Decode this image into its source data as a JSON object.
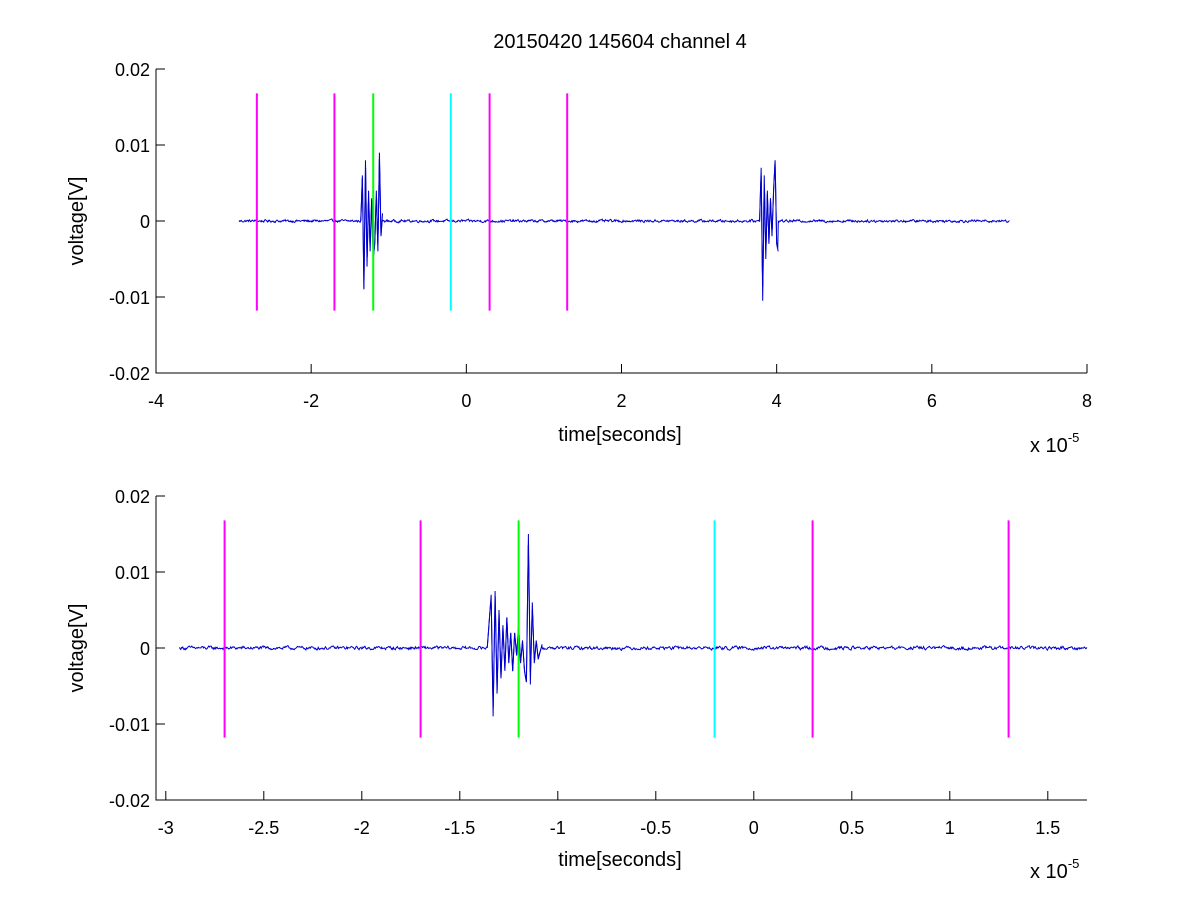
{
  "chart_data": [
    {
      "type": "line",
      "title": "20150420 145604 channel 4",
      "xlabel": "time[seconds]",
      "ylabel": "voltage[V]",
      "x_multiplier_base": "x 10",
      "x_multiplier_exponent": "-5",
      "xlim": [
        -4,
        8
      ],
      "ylim": [
        -0.02,
        0.02
      ],
      "xticks": [
        -4,
        -2,
        0,
        2,
        4,
        6,
        8
      ],
      "xtick_labels": [
        "-4",
        "-2",
        "0",
        "2",
        "4",
        "6",
        "8"
      ],
      "yticks": [
        -0.02,
        -0.01,
        0,
        0.01,
        0.02
      ],
      "ytick_labels": [
        "-0.02",
        "-0.01",
        "0",
        "0.01",
        "0.02"
      ],
      "grid": false,
      "series": [
        {
          "color": "#0000cc",
          "x_range": [
            -2.93,
            7.0
          ],
          "baseline": 0.0,
          "noise": 0.0003,
          "bursts": [
            {
              "x": [
                -1.36,
                -1.34,
                -1.32,
                -1.3,
                -1.28,
                -1.26,
                -1.24,
                -1.22,
                -1.2,
                -1.18,
                -1.16,
                -1.14,
                -1.12,
                -1.1,
                -1.08
              ],
              "y": [
                0.0,
                0.006,
                -0.009,
                0.008,
                -0.006,
                0.004,
                -0.004,
                0.003,
                -0.005,
                -0.003,
                0.004,
                -0.004,
                0.009,
                -0.002,
                0.001
              ]
            },
            {
              "x": [
                3.78,
                3.8,
                3.82,
                3.84,
                3.86,
                3.88,
                3.9,
                3.92,
                3.94,
                3.96,
                3.98,
                4.0,
                4.02
              ],
              "y": [
                0.0,
                0.007,
                -0.0105,
                0.006,
                -0.005,
                0.004,
                -0.003,
                0.003,
                -0.002,
                0.004,
                0.008,
                -0.003,
                -0.004
              ]
            }
          ]
        }
      ],
      "markers": [
        {
          "x": -2.7,
          "color": "#ff00ff",
          "y_range": [
            -0.0118,
            0.0168
          ]
        },
        {
          "x": -1.7,
          "color": "#ff00ff",
          "y_range": [
            -0.0118,
            0.0168
          ]
        },
        {
          "x": -1.2,
          "color": "#00ff00",
          "y_range": [
            -0.0118,
            0.0168
          ]
        },
        {
          "x": -0.2,
          "color": "#00ffff",
          "y_range": [
            -0.0118,
            0.0168
          ]
        },
        {
          "x": 0.3,
          "color": "#ff00ff",
          "y_range": [
            -0.0118,
            0.0168
          ]
        },
        {
          "x": 1.3,
          "color": "#ff00ff",
          "y_range": [
            -0.0118,
            0.0168
          ]
        }
      ]
    },
    {
      "type": "line",
      "title": "",
      "xlabel": "time[seconds]",
      "ylabel": "voltage[V]",
      "x_multiplier_base": "x 10",
      "x_multiplier_exponent": "-5",
      "xlim": [
        -3.05,
        1.7
      ],
      "ylim": [
        -0.02,
        0.02
      ],
      "xticks": [
        -3,
        -2.5,
        -2,
        -1.5,
        -1,
        -0.5,
        0,
        0.5,
        1,
        1.5
      ],
      "xtick_labels": [
        "-3",
        "-2.5",
        "-2",
        "-1.5",
        "-1",
        "-0.5",
        "0",
        "0.5",
        "1",
        "1.5"
      ],
      "yticks": [
        -0.02,
        -0.01,
        0,
        0.01,
        0.02
      ],
      "ytick_labels": [
        "-0.02",
        "-0.01",
        "0",
        "0.01",
        "0.02"
      ],
      "grid": false,
      "series": [
        {
          "color": "#0000cc",
          "x_range": [
            -2.93,
            1.7
          ],
          "baseline": 0.0,
          "noise": 0.0004,
          "bursts": [
            {
              "x": [
                -1.36,
                -1.34,
                -1.33,
                -1.32,
                -1.31,
                -1.3,
                -1.29,
                -1.28,
                -1.27,
                -1.26,
                -1.25,
                -1.24,
                -1.23,
                -1.22,
                -1.21,
                -1.2,
                -1.19,
                -1.18,
                -1.17,
                -1.16,
                -1.15,
                -1.14,
                -1.13,
                -1.12,
                -1.11,
                -1.1,
                -1.08
              ],
              "y": [
                0.0,
                0.007,
                -0.009,
                0.0075,
                -0.006,
                0.005,
                -0.004,
                0.003,
                -0.003,
                0.004,
                -0.002,
                0.002,
                -0.003,
                0.002,
                -0.001,
                0.003,
                -0.002,
                0.001,
                -0.003,
                -0.0045,
                0.015,
                -0.0048,
                0.006,
                -0.002,
                0.001,
                -0.0015,
                0.0005
              ]
            }
          ]
        }
      ],
      "markers": [
        {
          "x": -2.7,
          "color": "#ff00ff",
          "y_range": [
            -0.0118,
            0.0168
          ]
        },
        {
          "x": -1.7,
          "color": "#ff00ff",
          "y_range": [
            -0.0118,
            0.0168
          ]
        },
        {
          "x": -1.2,
          "color": "#00ff00",
          "y_range": [
            -0.0118,
            0.0168
          ]
        },
        {
          "x": -0.2,
          "color": "#00ffff",
          "y_range": [
            -0.0118,
            0.0168
          ]
        },
        {
          "x": 0.3,
          "color": "#ff00ff",
          "y_range": [
            -0.0118,
            0.0168
          ]
        },
        {
          "x": 1.3,
          "color": "#ff00ff",
          "y_range": [
            -0.0118,
            0.0168
          ]
        }
      ]
    }
  ]
}
